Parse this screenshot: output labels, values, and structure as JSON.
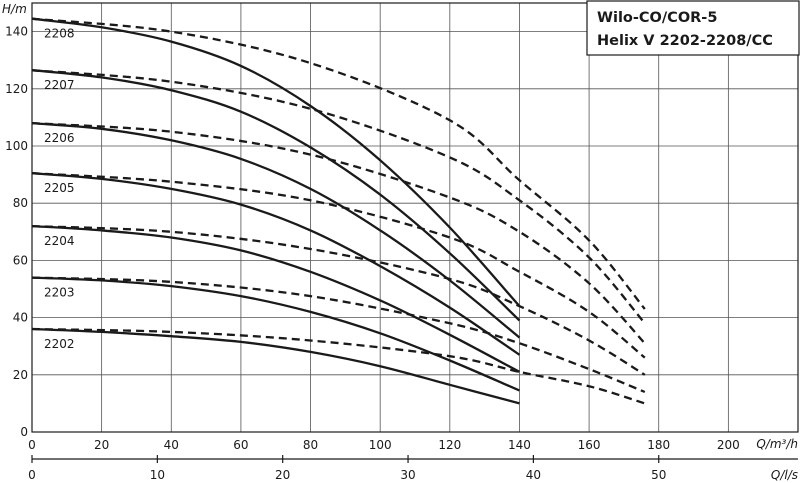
{
  "chart_data": {
    "type": "line",
    "title_lines": [
      "Wilo-CO/COR-5",
      "Helix V 2202-2208/CC"
    ],
    "ylabel": "H/m",
    "xlabel": "Q/m³/h",
    "xlabel_secondary": "Q/l/s",
    "xlim": [
      0,
      220
    ],
    "ylim": [
      0,
      150
    ],
    "secondary_xlim": [
      0,
      61.11
    ],
    "x_ticks": [
      0,
      20,
      40,
      60,
      80,
      100,
      120,
      140,
      160,
      180,
      200
    ],
    "y_ticks": [
      0,
      20,
      40,
      60,
      80,
      100,
      120,
      140
    ],
    "secondary_x_ticks": [
      0,
      10,
      20,
      30,
      40,
      50
    ],
    "grid": true,
    "series": [
      {
        "name": "2202",
        "solid": {
          "x": [
            0,
            20,
            40,
            60,
            80,
            100,
            120,
            140
          ],
          "y": [
            36,
            35,
            33.5,
            31.5,
            28,
            23,
            16.5,
            10
          ]
        },
        "dashed": {
          "x": [
            0,
            40,
            80,
            120,
            140,
            160,
            176
          ],
          "y": [
            36,
            35,
            32,
            26.5,
            21,
            16,
            10
          ]
        }
      },
      {
        "name": "2203",
        "solid": {
          "x": [
            0,
            20,
            40,
            60,
            80,
            100,
            120,
            140
          ],
          "y": [
            54,
            53,
            51,
            47.5,
            42,
            34.5,
            25,
            14.5
          ]
        },
        "dashed": {
          "x": [
            0,
            40,
            80,
            120,
            140,
            160,
            176
          ],
          "y": [
            54,
            52.5,
            47.5,
            38,
            31,
            22,
            14
          ]
        }
      },
      {
        "name": "2204",
        "solid": {
          "x": [
            0,
            20,
            40,
            60,
            80,
            100,
            120,
            140
          ],
          "y": [
            72,
            70.5,
            68,
            63.5,
            56,
            46,
            34,
            21
          ]
        },
        "dashed": {
          "x": [
            0,
            40,
            80,
            120,
            140,
            160,
            176
          ],
          "y": [
            72,
            70,
            64,
            53.5,
            44,
            32,
            20
          ]
        }
      },
      {
        "name": "2205",
        "solid": {
          "x": [
            0,
            20,
            40,
            60,
            80,
            100,
            120,
            140
          ],
          "y": [
            90.5,
            88.5,
            85,
            79.5,
            70.5,
            58,
            43.5,
            27
          ]
        },
        "dashed": {
          "x": [
            0,
            40,
            80,
            120,
            140,
            160,
            176
          ],
          "y": [
            90.5,
            87.5,
            81,
            68,
            56,
            42,
            26
          ]
        }
      },
      {
        "name": "2206",
        "solid": {
          "x": [
            0,
            20,
            40,
            60,
            80,
            100,
            120,
            140
          ],
          "y": [
            108,
            106,
            102,
            95.5,
            85,
            70.5,
            53,
            33
          ]
        },
        "dashed": {
          "x": [
            0,
            40,
            80,
            120,
            140,
            160,
            176
          ],
          "y": [
            108,
            105,
            97,
            82,
            70,
            52,
            31
          ]
        }
      },
      {
        "name": "2207",
        "solid": {
          "x": [
            0,
            20,
            40,
            60,
            80,
            100,
            120,
            140
          ],
          "y": [
            126.5,
            124,
            119.5,
            112,
            99.5,
            83,
            62.5,
            39
          ]
        },
        "dashed": {
          "x": [
            0,
            40,
            80,
            120,
            140,
            160,
            176
          ],
          "y": [
            126.5,
            122.5,
            113,
            96,
            81,
            61,
            38
          ]
        }
      },
      {
        "name": "2208",
        "solid": {
          "x": [
            0,
            20,
            40,
            60,
            80,
            100,
            120,
            140
          ],
          "y": [
            144.5,
            141.5,
            136.5,
            128,
            114,
            95,
            71.5,
            44
          ]
        },
        "dashed": {
          "x": [
            0,
            40,
            80,
            120,
            140,
            160,
            176
          ],
          "y": [
            144.5,
            140,
            129,
            109,
            88,
            67,
            43
          ]
        }
      }
    ]
  }
}
